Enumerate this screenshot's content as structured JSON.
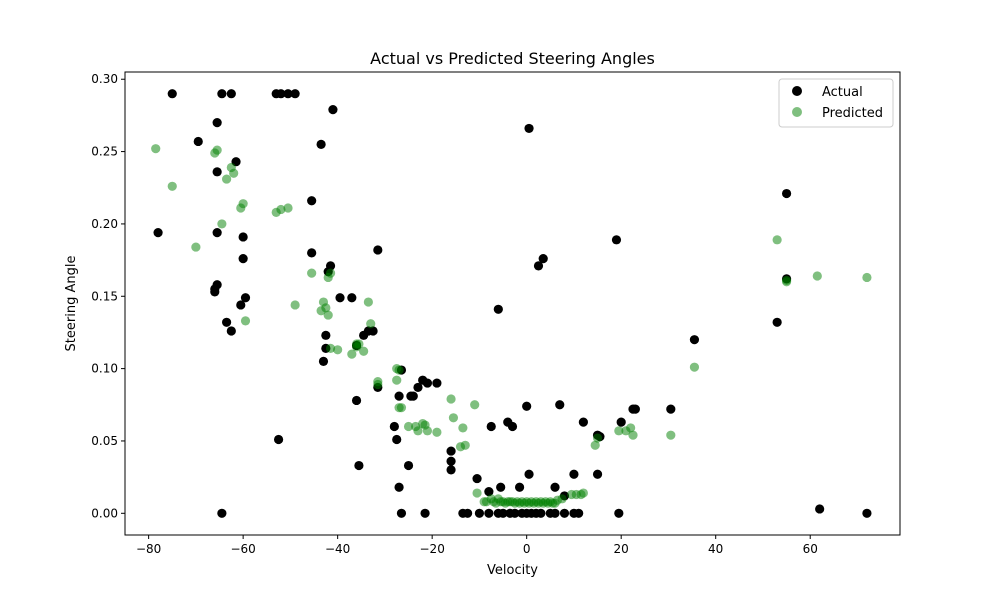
{
  "chart_data": {
    "type": "scatter",
    "title": "Actual vs Predicted Steering Angles",
    "xlabel": "Velocity",
    "ylabel": "Steering Angle",
    "xlim": [
      -85,
      79
    ],
    "ylim": [
      -0.015,
      0.305
    ],
    "x_ticks": [
      -80,
      -60,
      -40,
      -20,
      0,
      20,
      40,
      60
    ],
    "x_tick_labels": [
      "−80",
      "−60",
      "−40",
      "−20",
      "0",
      "20",
      "40",
      "60"
    ],
    "y_ticks": [
      0.0,
      0.05,
      0.1,
      0.15,
      0.2,
      0.25,
      0.3
    ],
    "y_tick_labels": [
      "0.00",
      "0.05",
      "0.10",
      "0.15",
      "0.20",
      "0.25",
      "0.30"
    ],
    "grid": false,
    "legend_position": "top-right",
    "series": [
      {
        "name": "Actual",
        "color": "#000000",
        "opacity": 1.0,
        "points": [
          [
            -75,
            0.29
          ],
          [
            -64.5,
            0.29
          ],
          [
            -62.5,
            0.29
          ],
          [
            -53,
            0.29
          ],
          [
            -52,
            0.29
          ],
          [
            -50.5,
            0.29
          ],
          [
            -49,
            0.29
          ],
          [
            -65.5,
            0.27
          ],
          [
            -41,
            0.279
          ],
          [
            0.5,
            0.266
          ],
          [
            -69.5,
            0.257
          ],
          [
            -43.5,
            0.255
          ],
          [
            -61.5,
            0.243
          ],
          [
            -65.5,
            0.236
          ],
          [
            55,
            0.221
          ],
          [
            -45.5,
            0.216
          ],
          [
            -78,
            0.194
          ],
          [
            -65.5,
            0.194
          ],
          [
            -60,
            0.191
          ],
          [
            19,
            0.189
          ],
          [
            -31.5,
            0.182
          ],
          [
            -45.5,
            0.18
          ],
          [
            -60,
            0.176
          ],
          [
            3.5,
            0.176
          ],
          [
            2.5,
            0.171
          ],
          [
            -41.5,
            0.171
          ],
          [
            -42,
            0.167
          ],
          [
            55,
            0.162
          ],
          [
            -65.5,
            0.158
          ],
          [
            -66,
            0.155
          ],
          [
            -66,
            0.153
          ],
          [
            -39.5,
            0.149
          ],
          [
            -37,
            0.149
          ],
          [
            -59.5,
            0.149
          ],
          [
            -60.5,
            0.144
          ],
          [
            -6,
            0.141
          ],
          [
            -63.5,
            0.132
          ],
          [
            53,
            0.132
          ],
          [
            -62.5,
            0.126
          ],
          [
            -33.5,
            0.126
          ],
          [
            -32.5,
            0.126
          ],
          [
            -34.5,
            0.123
          ],
          [
            -42.5,
            0.123
          ],
          [
            35.5,
            0.12
          ],
          [
            -36,
            0.116
          ],
          [
            -42.5,
            0.114
          ],
          [
            -43,
            0.105
          ],
          [
            -26.5,
            0.099
          ],
          [
            -22,
            0.092
          ],
          [
            -21,
            0.09
          ],
          [
            -19,
            0.09
          ],
          [
            -31.5,
            0.087
          ],
          [
            -23,
            0.087
          ],
          [
            -24.5,
            0.081
          ],
          [
            -24,
            0.081
          ],
          [
            -27,
            0.081
          ],
          [
            -36,
            0.078
          ],
          [
            7,
            0.075
          ],
          [
            0,
            0.074
          ],
          [
            22.5,
            0.072
          ],
          [
            23,
            0.072
          ],
          [
            30.5,
            0.072
          ],
          [
            -4,
            0.063
          ],
          [
            12,
            0.063
          ],
          [
            20,
            0.063
          ],
          [
            -3,
            0.06
          ],
          [
            -28,
            0.06
          ],
          [
            -7.5,
            0.06
          ],
          [
            15,
            0.054
          ],
          [
            15.5,
            0.053
          ],
          [
            -52.5,
            0.051
          ],
          [
            -27.5,
            0.051
          ],
          [
            -16,
            0.043
          ],
          [
            -16,
            0.036
          ],
          [
            -35.5,
            0.033
          ],
          [
            -25,
            0.033
          ],
          [
            -16,
            0.03
          ],
          [
            10,
            0.027
          ],
          [
            15,
            0.027
          ],
          [
            0.5,
            0.027
          ],
          [
            -10.5,
            0.024
          ],
          [
            -27,
            0.018
          ],
          [
            -5.5,
            0.018
          ],
          [
            -1.5,
            0.018
          ],
          [
            6,
            0.018
          ],
          [
            -8,
            0.015
          ],
          [
            8,
            0.012
          ],
          [
            62,
            0.003
          ],
          [
            -64.5,
            0
          ],
          [
            -26.5,
            0
          ],
          [
            -21.5,
            0
          ],
          [
            -13.5,
            0
          ],
          [
            -12.5,
            0
          ],
          [
            -10,
            0
          ],
          [
            -8,
            0
          ],
          [
            -6,
            0
          ],
          [
            -5,
            0
          ],
          [
            -3.5,
            0
          ],
          [
            -2.5,
            0
          ],
          [
            -1,
            0
          ],
          [
            0,
            0
          ],
          [
            1,
            0
          ],
          [
            2,
            0
          ],
          [
            3,
            0
          ],
          [
            5,
            0
          ],
          [
            6,
            0
          ],
          [
            8,
            0
          ],
          [
            10,
            0
          ],
          [
            11,
            0
          ],
          [
            19.5,
            0
          ],
          [
            72,
            0
          ]
        ]
      },
      {
        "name": "Predicted",
        "color": "#008000",
        "opacity": 0.5,
        "points": [
          [
            -78.5,
            0.252
          ],
          [
            -65.5,
            0.251
          ],
          [
            -66,
            0.249
          ],
          [
            -62.5,
            0.239
          ],
          [
            -63.5,
            0.231
          ],
          [
            -62,
            0.235
          ],
          [
            -75,
            0.226
          ],
          [
            -60,
            0.214
          ],
          [
            -60.5,
            0.211
          ],
          [
            -50.5,
            0.211
          ],
          [
            -52,
            0.21
          ],
          [
            -53,
            0.208
          ],
          [
            -64.5,
            0.2
          ],
          [
            53,
            0.189
          ],
          [
            -70,
            0.184
          ],
          [
            -45.5,
            0.166
          ],
          [
            -41.5,
            0.166
          ],
          [
            61.5,
            0.164
          ],
          [
            72,
            0.163
          ],
          [
            -42,
            0.163
          ],
          [
            55,
            0.161
          ],
          [
            55,
            0.16
          ],
          [
            -43,
            0.146
          ],
          [
            -33.5,
            0.146
          ],
          [
            -49,
            0.144
          ],
          [
            -42.5,
            0.142
          ],
          [
            -43.5,
            0.14
          ],
          [
            -42,
            0.137
          ],
          [
            -59.5,
            0.133
          ],
          [
            -33,
            0.131
          ],
          [
            -36,
            0.117
          ],
          [
            -35.5,
            0.117
          ],
          [
            -36,
            0.115
          ],
          [
            -41.5,
            0.114
          ],
          [
            -40,
            0.113
          ],
          [
            -37,
            0.11
          ],
          [
            -34.5,
            0.112
          ],
          [
            35.5,
            0.101
          ],
          [
            -27.5,
            0.1
          ],
          [
            -27,
            0.099
          ],
          [
            -31.5,
            0.091
          ],
          [
            -31.5,
            0.089
          ],
          [
            -27.5,
            0.092
          ],
          [
            -16,
            0.079
          ],
          [
            -11,
            0.075
          ],
          [
            -26.5,
            0.073
          ],
          [
            -27,
            0.073
          ],
          [
            -15.5,
            0.066
          ],
          [
            -22,
            0.062
          ],
          [
            -25,
            0.06
          ],
          [
            -21.5,
            0.061
          ],
          [
            -23.5,
            0.06
          ],
          [
            -13.5,
            0.059
          ],
          [
            22,
            0.059
          ],
          [
            -21,
            0.057
          ],
          [
            -19,
            0.056
          ],
          [
            -23,
            0.057
          ],
          [
            19.5,
            0.057
          ],
          [
            21,
            0.057
          ],
          [
            30.5,
            0.054
          ],
          [
            22.5,
            0.054
          ],
          [
            15,
            0.052
          ],
          [
            14.5,
            0.047
          ],
          [
            -13,
            0.047
          ],
          [
            -14,
            0.046
          ],
          [
            -10.5,
            0.014
          ],
          [
            12,
            0.014
          ],
          [
            9.5,
            0.013
          ],
          [
            10.5,
            0.013
          ],
          [
            11.5,
            0.013
          ],
          [
            -7.5,
            0.01
          ],
          [
            -6,
            0.01
          ],
          [
            7.5,
            0.01
          ],
          [
            6.5,
            0.009
          ],
          [
            -9,
            0.008
          ],
          [
            -8.5,
            0.008
          ],
          [
            -7,
            0.008
          ],
          [
            -5.5,
            0.008
          ],
          [
            -5,
            0.008
          ],
          [
            -4,
            0.008
          ],
          [
            -3.5,
            0.008
          ],
          [
            -3,
            0.008
          ],
          [
            -2,
            0.008
          ],
          [
            -1,
            0.008
          ],
          [
            0,
            0.008
          ],
          [
            1,
            0.008
          ],
          [
            2,
            0.008
          ],
          [
            3,
            0.008
          ],
          [
            4,
            0.008
          ],
          [
            5,
            0.008
          ],
          [
            -6.5,
            0.007
          ],
          [
            -4.5,
            0.007
          ],
          [
            -2.5,
            0.007
          ],
          [
            -1.5,
            0.007
          ],
          [
            -0.5,
            0.007
          ],
          [
            0.5,
            0.007
          ],
          [
            1.5,
            0.007
          ],
          [
            2.5,
            0.007
          ],
          [
            3.5,
            0.007
          ],
          [
            4.5,
            0.007
          ],
          [
            5.5,
            0.007
          ],
          [
            6,
            0.007
          ]
        ]
      }
    ]
  }
}
